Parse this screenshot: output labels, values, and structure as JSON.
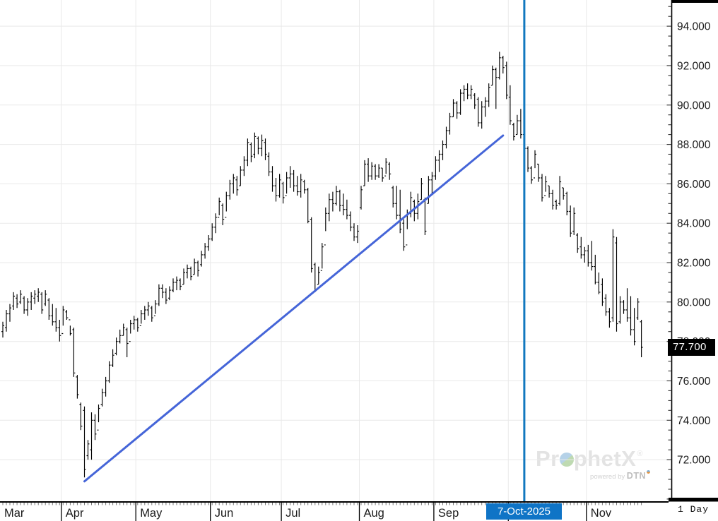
{
  "chart_data": {
    "type": "bar",
    "subtype": "ohlc-daily-bars",
    "title": "",
    "price_axis": {
      "side": "right",
      "label_min": 72,
      "label_max": 94,
      "tick_step_major": 2,
      "tick_step_minor": 0.5,
      "decimals": 3,
      "ylim": [
        69.89,
        95.33
      ],
      "last_price": 77.7,
      "last_price_label": "77.700"
    },
    "time_axis": {
      "months": [
        "Mar",
        "Apr",
        "May",
        "Jun",
        "Jul",
        "Aug",
        "Sep",
        "Oct",
        "Nov"
      ],
      "month_start_indices": [
        0,
        17,
        38,
        59,
        79,
        101,
        122,
        143,
        165
      ],
      "timeframe_label": "1 Day",
      "crosshair": {
        "bar_index": 147,
        "date_label": "7-Oct-2025"
      }
    },
    "grid": true,
    "bars_format": [
      "high",
      "low",
      "open",
      "close"
    ],
    "bars": [
      [
        79.0,
        78.2,
        78.5,
        78.8
      ],
      [
        79.6,
        78.5,
        78.7,
        79.4
      ],
      [
        79.9,
        79.0,
        79.4,
        79.7
      ],
      [
        80.5,
        79.6,
        79.8,
        80.3
      ],
      [
        80.4,
        79.7,
        80.2,
        79.9
      ],
      [
        80.6,
        79.9,
        80.0,
        80.4
      ],
      [
        80.3,
        79.4,
        80.2,
        79.6
      ],
      [
        80.2,
        79.3,
        79.6,
        80.0
      ],
      [
        80.5,
        79.6,
        80.0,
        80.3
      ],
      [
        80.6,
        79.9,
        80.2,
        80.4
      ],
      [
        80.7,
        80.0,
        80.3,
        80.5
      ],
      [
        80.5,
        79.4,
        80.4,
        79.6
      ],
      [
        80.6,
        79.8,
        79.9,
        80.4
      ],
      [
        80.2,
        79.1,
        80.1,
        79.3
      ],
      [
        79.9,
        78.8,
        79.3,
        79.0
      ],
      [
        79.7,
        78.5,
        79.0,
        78.7
      ],
      [
        79.1,
        78.0,
        78.7,
        78.3
      ],
      [
        79.8,
        78.8,
        78.4,
        79.6
      ],
      [
        79.6,
        79.1,
        79.5,
        79.2
      ],
      [
        78.8,
        78.3,
        79.1,
        78.4
      ],
      [
        78.7,
        76.2,
        78.6,
        76.4
      ],
      [
        76.3,
        75.1,
        76.2,
        75.3
      ],
      [
        74.9,
        73.5,
        74.8,
        73.7
      ],
      [
        74.7,
        71.1,
        74.5,
        71.5
      ],
      [
        73.0,
        72.0,
        72.2,
        72.8
      ],
      [
        74.4,
        72.0,
        72.5,
        74.0
      ],
      [
        74.3,
        73.0,
        74.0,
        73.3
      ],
      [
        74.8,
        73.9,
        73.5,
        74.6
      ],
      [
        75.6,
        74.7,
        74.8,
        75.4
      ],
      [
        76.2,
        75.2,
        75.4,
        76.0
      ],
      [
        77.0,
        75.9,
        76.0,
        76.8
      ],
      [
        77.6,
        76.7,
        76.8,
        77.3
      ],
      [
        78.2,
        77.3,
        77.4,
        78.0
      ],
      [
        78.6,
        77.9,
        78.0,
        78.3
      ],
      [
        78.9,
        78.3,
        78.3,
        78.7
      ],
      [
        78.7,
        77.2,
        78.6,
        77.9
      ],
      [
        79.1,
        78.4,
        78.0,
        78.9
      ],
      [
        79.3,
        78.6,
        78.9,
        79.1
      ],
      [
        79.2,
        78.5,
        79.1,
        78.7
      ],
      [
        79.6,
        78.9,
        78.8,
        79.4
      ],
      [
        79.8,
        79.1,
        79.4,
        79.6
      ],
      [
        80.0,
        79.3,
        79.6,
        79.8
      ],
      [
        79.8,
        79.0,
        79.7,
        79.2
      ],
      [
        80.1,
        79.4,
        79.3,
        79.9
      ],
      [
        80.9,
        79.8,
        79.9,
        80.7
      ],
      [
        80.9,
        80.2,
        80.7,
        80.5
      ],
      [
        80.7,
        79.9,
        80.5,
        80.1
      ],
      [
        80.8,
        80.1,
        80.2,
        80.6
      ],
      [
        81.2,
        80.5,
        80.6,
        81.0
      ],
      [
        81.3,
        80.6,
        81.0,
        81.1
      ],
      [
        81.2,
        80.6,
        81.1,
        80.8
      ],
      [
        81.7,
        80.9,
        80.9,
        81.5
      ],
      [
        81.9,
        81.2,
        81.5,
        81.7
      ],
      [
        81.8,
        81.1,
        81.7,
        81.3
      ],
      [
        82.2,
        81.4,
        81.4,
        82.0
      ],
      [
        82.1,
        81.3,
        82.0,
        81.6
      ],
      [
        82.6,
        81.8,
        81.9,
        82.4
      ],
      [
        83.0,
        82.2,
        82.4,
        82.8
      ],
      [
        83.4,
        82.6,
        82.8,
        83.2
      ],
      [
        84.0,
        83.1,
        83.2,
        83.8
      ],
      [
        84.5,
        83.5,
        83.8,
        84.3
      ],
      [
        85.3,
        84.4,
        84.3,
        85.1
      ],
      [
        85.0,
        83.9,
        84.9,
        84.2
      ],
      [
        85.6,
        84.6,
        84.3,
        85.4
      ],
      [
        86.2,
        85.2,
        85.4,
        86.0
      ],
      [
        86.5,
        85.5,
        86.0,
        86.3
      ],
      [
        86.4,
        85.4,
        86.2,
        85.7
      ],
      [
        86.9,
        85.9,
        85.9,
        86.7
      ],
      [
        87.4,
        86.4,
        86.7,
        87.2
      ],
      [
        88.3,
        86.9,
        87.2,
        88.1
      ],
      [
        88.1,
        87.1,
        88.0,
        87.4
      ],
      [
        88.6,
        87.3,
        87.5,
        88.4
      ],
      [
        88.4,
        87.5,
        88.3,
        87.8
      ],
      [
        88.5,
        87.4,
        87.8,
        88.2
      ],
      [
        88.3,
        87.2,
        88.1,
        87.5
      ],
      [
        87.6,
        86.4,
        87.4,
        86.6
      ],
      [
        86.9,
        85.6,
        86.6,
        85.9
      ],
      [
        86.3,
        85.1,
        85.9,
        85.4
      ],
      [
        86.5,
        85.3,
        85.4,
        86.2
      ],
      [
        86.1,
        85.0,
        86.0,
        85.3
      ],
      [
        86.6,
        85.5,
        85.4,
        86.3
      ],
      [
        86.9,
        85.8,
        86.3,
        86.5
      ],
      [
        86.7,
        85.6,
        86.5,
        85.9
      ],
      [
        86.4,
        85.4,
        85.9,
        85.6
      ],
      [
        86.5,
        85.3,
        85.6,
        86.2
      ],
      [
        86.2,
        85.5,
        86.1,
        85.7
      ],
      [
        85.8,
        84.0,
        85.7,
        84.1
      ],
      [
        84.3,
        81.5,
        84.2,
        81.7
      ],
      [
        82.0,
        80.5,
        81.9,
        80.6
      ],
      [
        81.8,
        80.9,
        80.9,
        81.5
      ],
      [
        83.0,
        81.7,
        81.6,
        82.8
      ],
      [
        84.8,
        83.6,
        82.9,
        84.5
      ],
      [
        85.5,
        84.1,
        84.5,
        85.2
      ],
      [
        85.6,
        84.6,
        85.2,
        85.0
      ],
      [
        85.9,
        84.9,
        85.0,
        85.6
      ],
      [
        85.7,
        84.6,
        85.6,
        84.9
      ],
      [
        85.5,
        84.4,
        84.9,
        84.7
      ],
      [
        85.2,
        84.2,
        84.7,
        84.4
      ],
      [
        84.6,
        83.6,
        84.4,
        83.8
      ],
      [
        84.0,
        83.1,
        83.8,
        83.3
      ],
      [
        83.9,
        83.0,
        83.3,
        83.6
      ],
      [
        85.9,
        84.7,
        84.8,
        85.7
      ],
      [
        87.2,
        85.9,
        85.9,
        87.0
      ],
      [
        87.3,
        86.1,
        87.0,
        86.4
      ],
      [
        87.1,
        86.2,
        86.4,
        86.9
      ],
      [
        87.0,
        86.2,
        86.9,
        86.4
      ],
      [
        87.0,
        86.3,
        86.4,
        86.8
      ],
      [
        86.8,
        86.1,
        86.8,
        86.3
      ],
      [
        87.3,
        86.5,
        86.4,
        87.1
      ],
      [
        87.1,
        86.2,
        87.0,
        86.5
      ],
      [
        85.9,
        84.8,
        85.8,
        85.0
      ],
      [
        85.9,
        84.2,
        85.0,
        84.4
      ],
      [
        85.7,
        83.5,
        84.4,
        83.7
      ],
      [
        84.2,
        82.6,
        84.0,
        82.8
      ],
      [
        84.7,
        83.7,
        82.9,
        84.5
      ],
      [
        85.6,
        84.3,
        84.5,
        85.3
      ],
      [
        85.2,
        84.1,
        85.1,
        84.5
      ],
      [
        85.5,
        84.2,
        84.5,
        85.1
      ],
      [
        86.3,
        85.2,
        85.2,
        86.0
      ],
      [
        85.3,
        83.4,
        85.2,
        83.6
      ],
      [
        86.4,
        85.0,
        85.0,
        86.2
      ],
      [
        86.6,
        85.5,
        86.2,
        86.4
      ],
      [
        87.4,
        86.2,
        86.4,
        87.2
      ],
      [
        87.7,
        86.6,
        87.2,
        87.5
      ],
      [
        88.2,
        87.2,
        87.5,
        88.0
      ],
      [
        88.9,
        87.8,
        88.0,
        88.7
      ],
      [
        89.6,
        88.5,
        88.7,
        89.4
      ],
      [
        90.3,
        89.4,
        89.4,
        90.1
      ],
      [
        90.2,
        89.3,
        90.1,
        89.6
      ],
      [
        90.8,
        89.5,
        89.6,
        90.6
      ],
      [
        91.0,
        90.2,
        90.6,
        90.8
      ],
      [
        91.1,
        90.3,
        90.8,
        90.5
      ],
      [
        91.0,
        90.3,
        90.5,
        90.8
      ],
      [
        90.6,
        89.8,
        90.5,
        90.0
      ],
      [
        90.4,
        88.9,
        90.3,
        89.1
      ],
      [
        90.2,
        88.8,
        89.1,
        89.9
      ],
      [
        90.4,
        89.4,
        89.9,
        90.2
      ],
      [
        91.1,
        89.9,
        90.2,
        90.9
      ],
      [
        92.0,
        91.0,
        91.0,
        91.8
      ],
      [
        91.9,
        89.8,
        91.8,
        91.4
      ],
      [
        92.7,
        91.3,
        91.4,
        92.4
      ],
      [
        92.5,
        91.6,
        92.4,
        91.9
      ],
      [
        92.2,
        90.3,
        92.0,
        90.5
      ],
      [
        91.0,
        89.0,
        90.4,
        89.2
      ],
      [
        89.1,
        88.2,
        89.0,
        88.4
      ],
      [
        89.5,
        88.5,
        88.5,
        89.2
      ],
      [
        89.8,
        88.3,
        89.2,
        88.5
      ],
      [
        88.8,
        87.7,
        88.5,
        87.8
      ],
      [
        87.9,
        86.6,
        87.8,
        86.8
      ],
      [
        86.9,
        86.0,
        86.8,
        86.2
      ],
      [
        87.7,
        86.8,
        86.3,
        87.5
      ],
      [
        87.0,
        86.1,
        87.0,
        86.3
      ],
      [
        86.5,
        85.1,
        86.3,
        85.3
      ],
      [
        86.4,
        85.6,
        85.4,
        86.1
      ],
      [
        85.9,
        85.3,
        85.9,
        85.5
      ],
      [
        85.7,
        84.7,
        85.5,
        84.9
      ],
      [
        85.2,
        84.7,
        85.1,
        84.9
      ],
      [
        86.4,
        84.9,
        85.0,
        86.1
      ],
      [
        85.8,
        85.2,
        85.8,
        85.4
      ],
      [
        85.6,
        84.4,
        85.5,
        84.6
      ],
      [
        84.9,
        83.3,
        84.6,
        83.5
      ],
      [
        84.8,
        83.4,
        83.6,
        84.5
      ],
      [
        83.5,
        82.5,
        83.4,
        82.7
      ],
      [
        83.3,
        82.2,
        82.8,
        82.4
      ],
      [
        82.8,
        82.0,
        82.4,
        82.6
      ],
      [
        82.9,
        81.8,
        82.6,
        82.0
      ],
      [
        83.1,
        81.6,
        82.0,
        81.8
      ],
      [
        82.4,
        80.9,
        81.8,
        81.0
      ],
      [
        81.5,
        80.4,
        81.0,
        80.5
      ],
      [
        81.2,
        79.8,
        80.9,
        80.0
      ],
      [
        80.4,
        79.3,
        80.2,
        79.5
      ],
      [
        79.7,
        78.7,
        79.5,
        79.0
      ],
      [
        83.7,
        79.0,
        79.2,
        83.3
      ],
      [
        83.3,
        78.5,
        83.0,
        78.9
      ],
      [
        80.3,
        78.9,
        79.0,
        80.0
      ],
      [
        80.1,
        79.4,
        80.0,
        79.6
      ],
      [
        80.7,
        79.0,
        79.6,
        79.2
      ],
      [
        80.3,
        78.3,
        79.2,
        78.6
      ],
      [
        79.7,
        77.8,
        78.6,
        78.0
      ],
      [
        80.2,
        79.1,
        79.2,
        80.0
      ],
      [
        79.1,
        77.2,
        79.0,
        77.7
      ]
    ],
    "trendline": {
      "start": {
        "bar_index": 23,
        "price": 70.9
      },
      "end": {
        "bar_index": 141,
        "price": 88.45
      }
    }
  },
  "watermark": {
    "logo_pre": "Pr",
    "logo_post": "phetX",
    "reg": "®",
    "powered_by": "powered by",
    "brand": "DTN"
  },
  "colors": {
    "bar": "#000000",
    "grid": "#e9e9e9",
    "trendline": "#4565d8",
    "crosshair_line": "#1278bf",
    "date_chip_bg": "#0f74c6",
    "marker_bg": "#000000",
    "marker_text": "#ffffff",
    "axis_text": "#1a1a1a",
    "axis_line": "#000000"
  }
}
